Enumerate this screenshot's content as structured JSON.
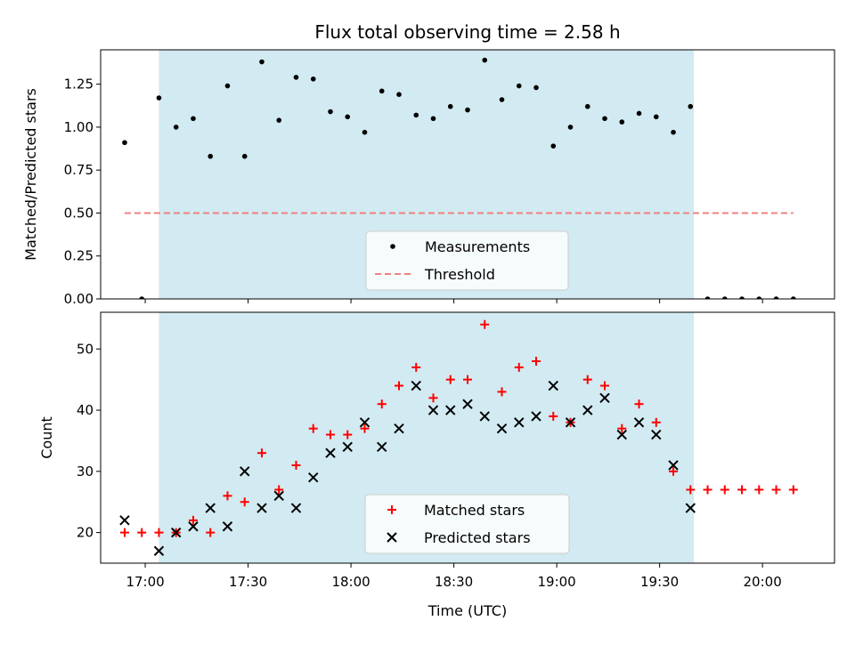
{
  "chart_data": [
    {
      "type": "scatter",
      "title": "Flux total observing time = 2.58 h",
      "ylabel": "Matched/Predicted stars",
      "xlabel": "",
      "ylim": [
        0,
        1.45
      ],
      "yticks": [
        0,
        0.25,
        0.5,
        0.75,
        1.0,
        1.25
      ],
      "ytick_labels": [
        "0.00",
        "0.25",
        "0.50",
        "0.75",
        "1.00",
        "1.25"
      ],
      "xlim": [
        "16:47",
        "20:21"
      ],
      "shaded_interval": [
        "17:04",
        "19:40"
      ],
      "shaded_color": "#add8e6",
      "legend_position": "lower center",
      "series": [
        {
          "name": "Measurements",
          "marker": "dot",
          "color": "#000000",
          "x": [
            "16:54",
            "16:59",
            "17:04",
            "17:09",
            "17:14",
            "17:19",
            "17:24",
            "17:29",
            "17:34",
            "17:39",
            "17:44",
            "17:49",
            "17:54",
            "17:59",
            "18:04",
            "18:09",
            "18:14",
            "18:19",
            "18:24",
            "18:29",
            "18:34",
            "18:39",
            "18:44",
            "18:49",
            "18:54",
            "18:59",
            "19:04",
            "19:09",
            "19:14",
            "19:19",
            "19:24",
            "19:29",
            "19:34",
            "19:39",
            "19:44",
            "19:49",
            "19:54",
            "19:59",
            "20:04",
            "20:09"
          ],
          "y": [
            0.91,
            0.0,
            1.17,
            1.0,
            1.05,
            0.83,
            1.24,
            0.83,
            1.38,
            1.04,
            1.29,
            1.28,
            1.09,
            1.06,
            0.97,
            1.21,
            1.19,
            1.07,
            1.05,
            1.12,
            1.1,
            1.39,
            1.16,
            1.24,
            1.23,
            0.89,
            1.0,
            1.12,
            1.05,
            1.03,
            1.08,
            1.06,
            0.97,
            1.12,
            0.0,
            0.0,
            0.0,
            0.0,
            0.0,
            0.0
          ]
        },
        {
          "name": "Threshold",
          "marker": "dashed-line",
          "color": "#f08080",
          "x": [
            "16:54",
            "20:09"
          ],
          "y": [
            0.5,
            0.5
          ]
        }
      ]
    },
    {
      "type": "scatter",
      "title": "",
      "ylabel": "Count",
      "xlabel": "Time (UTC)",
      "ylim": [
        15,
        56
      ],
      "yticks": [
        20,
        30,
        40,
        50
      ],
      "ytick_labels": [
        "20",
        "30",
        "40",
        "50"
      ],
      "xlim": [
        "16:47",
        "20:21"
      ],
      "xticks": [
        "17:00",
        "17:30",
        "18:00",
        "18:30",
        "19:00",
        "19:30",
        "20:00"
      ],
      "xtick_labels": [
        "17:00",
        "17:30",
        "18:00",
        "18:30",
        "19:00",
        "19:30",
        "20:00"
      ],
      "shaded_interval": [
        "17:04",
        "19:40"
      ],
      "shaded_color": "#add8e6",
      "legend_position": "lower center",
      "series": [
        {
          "name": "Matched stars",
          "marker": "plus",
          "color": "#ff0000",
          "x": [
            "16:54",
            "16:59",
            "17:04",
            "17:09",
            "17:14",
            "17:19",
            "17:24",
            "17:29",
            "17:34",
            "17:39",
            "17:44",
            "17:49",
            "17:54",
            "17:59",
            "18:04",
            "18:09",
            "18:14",
            "18:19",
            "18:24",
            "18:29",
            "18:34",
            "18:39",
            "18:44",
            "18:49",
            "18:54",
            "18:59",
            "19:04",
            "19:09",
            "19:14",
            "19:19",
            "19:24",
            "19:29",
            "19:34",
            "19:39",
            "19:44",
            "19:49",
            "19:54",
            "19:59",
            "20:04",
            "20:09"
          ],
          "y": [
            20,
            20,
            20,
            20,
            22,
            20,
            26,
            25,
            33,
            27,
            31,
            37,
            36,
            36,
            37,
            41,
            44,
            47,
            42,
            45,
            45,
            54,
            43,
            47,
            48,
            39,
            38,
            45,
            44,
            37,
            41,
            38,
            30,
            27,
            27,
            27,
            27,
            27,
            27,
            27
          ]
        },
        {
          "name": "Predicted stars",
          "marker": "x",
          "color": "#000000",
          "x": [
            "16:54",
            "17:04",
            "17:09",
            "17:14",
            "17:19",
            "17:24",
            "17:29",
            "17:34",
            "17:39",
            "17:44",
            "17:49",
            "17:54",
            "17:59",
            "18:04",
            "18:09",
            "18:14",
            "18:19",
            "18:24",
            "18:29",
            "18:34",
            "18:39",
            "18:44",
            "18:49",
            "18:54",
            "18:59",
            "19:04",
            "19:09",
            "19:14",
            "19:19",
            "19:24",
            "19:29",
            "19:34",
            "19:39"
          ],
          "y": [
            22,
            17,
            20,
            21,
            24,
            21,
            30,
            24,
            26,
            24,
            29,
            33,
            34,
            38,
            34,
            37,
            44,
            40,
            40,
            41,
            39,
            37,
            38,
            39,
            44,
            38,
            40,
            42,
            36,
            38,
            36,
            31,
            24
          ]
        }
      ]
    }
  ]
}
